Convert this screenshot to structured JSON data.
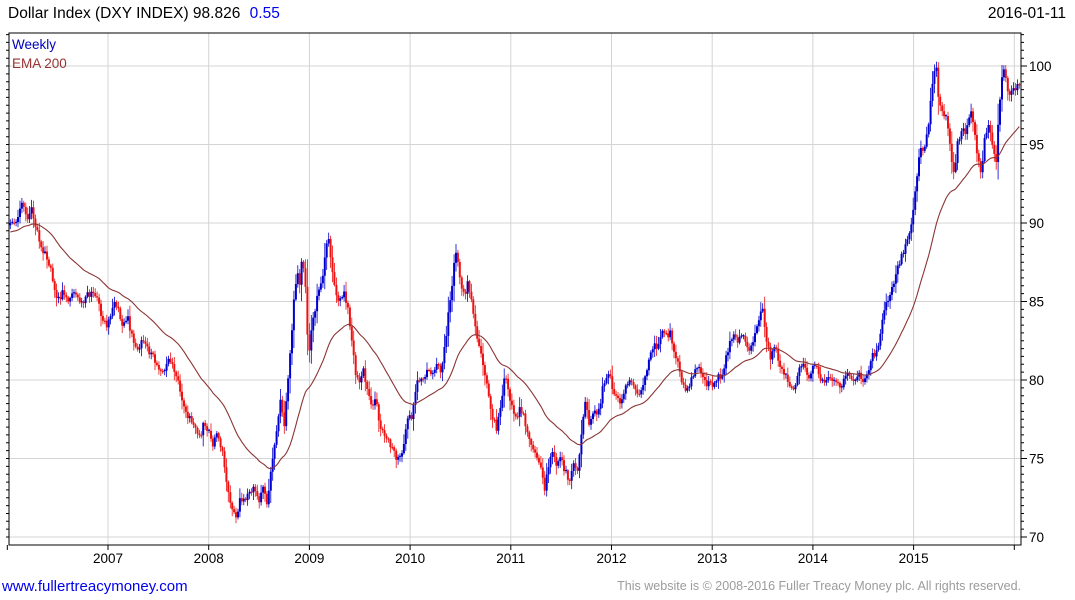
{
  "header": {
    "title": "Dollar Index (DXY INDEX)",
    "last": "98.826",
    "change": "0.55",
    "change_color": "#0000ee",
    "date": "2016-01-11"
  },
  "legend": {
    "items": [
      {
        "label": "Weekly",
        "color": "#0000bb"
      },
      {
        "label": "EMA 200",
        "color": "#993333"
      }
    ]
  },
  "footer": {
    "link": "www.fullertreacymoney.com",
    "copyright": "This website is © 2008-2016 Fuller Treacy Money plc. All rights reserved."
  },
  "chart_data": {
    "type": "candlestick",
    "title": "Dollar Index (DXY INDEX)",
    "timeframe": "Weekly",
    "last_close": 98.826,
    "weekly_change": 0.55,
    "x_range": [
      2006.03,
      2016.05
    ],
    "y_range": [
      69.5,
      102.2
    ],
    "x_ticks": [
      2007,
      2008,
      2009,
      2010,
      2011,
      2012,
      2013,
      2014,
      2015
    ],
    "x_tick_marks": [
      2006,
      2007,
      2008,
      2009,
      2010,
      2011,
      2012,
      2013,
      2014,
      2015,
      2016
    ],
    "x_grid_years": [
      2007,
      2008,
      2009,
      2010,
      2011,
      2012,
      2013,
      2014,
      2015,
      2016
    ],
    "y_ticks": [
      70,
      75,
      80,
      85,
      90,
      95,
      100
    ],
    "y_minor_step": 0.5,
    "grid": true,
    "legend_position": "top-left",
    "colors": {
      "up": "#0000cc",
      "down": "#ee1111",
      "ema": "#8b3434",
      "grid": "#d4d4d4",
      "axis": "#000000"
    },
    "ema": {
      "label": "EMA 200",
      "period_days": 200,
      "weekly_alpha": 0.0488,
      "seed": 89.4
    },
    "close_anchors": [
      [
        2006.03,
        89.8
      ],
      [
        2006.08,
        90.1
      ],
      [
        2006.12,
        90.7
      ],
      [
        2006.16,
        91.3
      ],
      [
        2006.2,
        90.2
      ],
      [
        2006.24,
        90.9
      ],
      [
        2006.3,
        89.4
      ],
      [
        2006.35,
        88.3
      ],
      [
        2006.42,
        87.3
      ],
      [
        2006.46,
        86.2
      ],
      [
        2006.5,
        84.9
      ],
      [
        2006.55,
        85.7
      ],
      [
        2006.6,
        84.8
      ],
      [
        2006.65,
        85.6
      ],
      [
        2006.7,
        85.2
      ],
      [
        2006.75,
        84.7
      ],
      [
        2006.8,
        85.4
      ],
      [
        2006.85,
        85.8
      ],
      [
        2006.9,
        85.1
      ],
      [
        2006.95,
        83.6
      ],
      [
        2007.0,
        83.4
      ],
      [
        2007.05,
        84.9
      ],
      [
        2007.1,
        84.5
      ],
      [
        2007.14,
        83.6
      ],
      [
        2007.2,
        83.9
      ],
      [
        2007.25,
        82.4
      ],
      [
        2007.3,
        81.8
      ],
      [
        2007.35,
        82.7
      ],
      [
        2007.4,
        81.9
      ],
      [
        2007.45,
        81.4
      ],
      [
        2007.5,
        80.7
      ],
      [
        2007.55,
        80.3
      ],
      [
        2007.6,
        81.3
      ],
      [
        2007.65,
        80.8
      ],
      [
        2007.7,
        79.8
      ],
      [
        2007.75,
        78.2
      ],
      [
        2007.8,
        77.6
      ],
      [
        2007.85,
        77.2
      ],
      [
        2007.9,
        76.2
      ],
      [
        2007.95,
        77.1
      ],
      [
        2008.0,
        76.6
      ],
      [
        2008.04,
        75.9
      ],
      [
        2008.08,
        76.7
      ],
      [
        2008.13,
        75.6
      ],
      [
        2008.17,
        73.7
      ],
      [
        2008.2,
        72.4
      ],
      [
        2008.24,
        71.6
      ],
      [
        2008.28,
        71.3
      ],
      [
        2008.32,
        72.6
      ],
      [
        2008.36,
        72.2
      ],
      [
        2008.4,
        72.8
      ],
      [
        2008.45,
        73.3
      ],
      [
        2008.5,
        72.3
      ],
      [
        2008.54,
        73.0
      ],
      [
        2008.58,
        72.1
      ],
      [
        2008.61,
        73.6
      ],
      [
        2008.65,
        75.5
      ],
      [
        2008.68,
        77.3
      ],
      [
        2008.72,
        78.8
      ],
      [
        2008.75,
        77.1
      ],
      [
        2008.78,
        79.2
      ],
      [
        2008.82,
        82.6
      ],
      [
        2008.85,
        85.4
      ],
      [
        2008.88,
        87.2
      ],
      [
        2008.9,
        85.8
      ],
      [
        2008.93,
        88.0
      ],
      [
        2008.96,
        86.2
      ],
      [
        2008.99,
        81.3
      ],
      [
        2009.02,
        83.1
      ],
      [
        2009.06,
        84.6
      ],
      [
        2009.1,
        86.0
      ],
      [
        2009.14,
        86.9
      ],
      [
        2009.18,
        89.4
      ],
      [
        2009.22,
        87.5
      ],
      [
        2009.26,
        85.4
      ],
      [
        2009.3,
        84.8
      ],
      [
        2009.34,
        85.9
      ],
      [
        2009.38,
        84.6
      ],
      [
        2009.42,
        82.7
      ],
      [
        2009.46,
        80.2
      ],
      [
        2009.5,
        79.9
      ],
      [
        2009.54,
        80.6
      ],
      [
        2009.58,
        79.3
      ],
      [
        2009.62,
        78.3
      ],
      [
        2009.66,
        78.8
      ],
      [
        2009.7,
        76.9
      ],
      [
        2009.75,
        76.4
      ],
      [
        2009.8,
        75.9
      ],
      [
        2009.85,
        75.2
      ],
      [
        2009.9,
        74.9
      ],
      [
        2009.94,
        75.8
      ],
      [
        2009.98,
        77.9
      ],
      [
        2010.02,
        77.5
      ],
      [
        2010.06,
        79.5
      ],
      [
        2010.1,
        80.3
      ],
      [
        2010.14,
        79.8
      ],
      [
        2010.18,
        80.7
      ],
      [
        2010.22,
        80.2
      ],
      [
        2010.26,
        81.1
      ],
      [
        2010.3,
        80.4
      ],
      [
        2010.34,
        81.9
      ],
      [
        2010.38,
        84.2
      ],
      [
        2010.42,
        86.1
      ],
      [
        2010.45,
        88.3
      ],
      [
        2010.48,
        87.5
      ],
      [
        2010.5,
        86.0
      ],
      [
        2010.54,
        85.3
      ],
      [
        2010.58,
        86.3
      ],
      [
        2010.62,
        84.5
      ],
      [
        2010.66,
        83.0
      ],
      [
        2010.7,
        81.6
      ],
      [
        2010.74,
        80.5
      ],
      [
        2010.78,
        79.0
      ],
      [
        2010.82,
        77.6
      ],
      [
        2010.86,
        76.8
      ],
      [
        2010.9,
        78.4
      ],
      [
        2010.94,
        80.4
      ],
      [
        2010.98,
        79.1
      ],
      [
        2011.02,
        78.1
      ],
      [
        2011.06,
        77.6
      ],
      [
        2011.1,
        78.3
      ],
      [
        2011.14,
        77.3
      ],
      [
        2011.18,
        76.4
      ],
      [
        2011.22,
        75.8
      ],
      [
        2011.26,
        75.2
      ],
      [
        2011.3,
        74.2
      ],
      [
        2011.34,
        73.1
      ],
      [
        2011.38,
        74.9
      ],
      [
        2011.42,
        75.6
      ],
      [
        2011.46,
        74.4
      ],
      [
        2011.5,
        75.1
      ],
      [
        2011.54,
        74.1
      ],
      [
        2011.58,
        73.7
      ],
      [
        2011.62,
        74.6
      ],
      [
        2011.66,
        73.9
      ],
      [
        2011.7,
        76.6
      ],
      [
        2011.74,
        78.8
      ],
      [
        2011.78,
        77.2
      ],
      [
        2011.82,
        78.1
      ],
      [
        2011.86,
        77.5
      ],
      [
        2011.9,
        79.0
      ],
      [
        2011.94,
        80.3
      ],
      [
        2011.98,
        80.2
      ],
      [
        2012.02,
        79.4
      ],
      [
        2012.06,
        79.0
      ],
      [
        2012.1,
        78.6
      ],
      [
        2012.14,
        79.4
      ],
      [
        2012.18,
        79.9
      ],
      [
        2012.22,
        79.5
      ],
      [
        2012.26,
        78.9
      ],
      [
        2012.3,
        79.6
      ],
      [
        2012.34,
        80.2
      ],
      [
        2012.38,
        81.3
      ],
      [
        2012.42,
        82.4
      ],
      [
        2012.46,
        81.9
      ],
      [
        2012.5,
        83.4
      ],
      [
        2012.54,
        82.7
      ],
      [
        2012.58,
        83.0
      ],
      [
        2012.62,
        81.7
      ],
      [
        2012.66,
        81.3
      ],
      [
        2012.7,
        79.9
      ],
      [
        2012.74,
        79.4
      ],
      [
        2012.78,
        79.9
      ],
      [
        2012.82,
        80.5
      ],
      [
        2012.86,
        81.0
      ],
      [
        2012.9,
        80.3
      ],
      [
        2012.94,
        79.7
      ],
      [
        2012.98,
        79.8
      ],
      [
        2013.02,
        79.6
      ],
      [
        2013.06,
        80.3
      ],
      [
        2013.1,
        80.1
      ],
      [
        2013.14,
        81.4
      ],
      [
        2013.18,
        82.7
      ],
      [
        2013.22,
        82.9
      ],
      [
        2013.26,
        82.4
      ],
      [
        2013.3,
        83.2
      ],
      [
        2013.34,
        82.1
      ],
      [
        2013.38,
        81.8
      ],
      [
        2013.42,
        83.0
      ],
      [
        2013.46,
        83.9
      ],
      [
        2013.5,
        84.5
      ],
      [
        2013.53,
        83.0
      ],
      [
        2013.58,
        81.4
      ],
      [
        2013.62,
        82.3
      ],
      [
        2013.66,
        81.3
      ],
      [
        2013.7,
        80.4
      ],
      [
        2013.74,
        80.1
      ],
      [
        2013.78,
        79.3
      ],
      [
        2013.82,
        79.7
      ],
      [
        2013.86,
        80.7
      ],
      [
        2013.9,
        80.9
      ],
      [
        2013.94,
        80.3
      ],
      [
        2013.98,
        80.2
      ],
      [
        2014.02,
        81.1
      ],
      [
        2014.06,
        80.4
      ],
      [
        2014.1,
        79.8
      ],
      [
        2014.14,
        80.1
      ],
      [
        2014.18,
        80.3
      ],
      [
        2014.22,
        79.9
      ],
      [
        2014.26,
        79.5
      ],
      [
        2014.3,
        79.8
      ],
      [
        2014.34,
        80.4
      ],
      [
        2014.38,
        80.1
      ],
      [
        2014.42,
        79.8
      ],
      [
        2014.46,
        80.3
      ],
      [
        2014.5,
        80.1
      ],
      [
        2014.54,
        80.6
      ],
      [
        2014.58,
        81.3
      ],
      [
        2014.62,
        81.8
      ],
      [
        2014.66,
        82.6
      ],
      [
        2014.7,
        84.0
      ],
      [
        2014.74,
        85.1
      ],
      [
        2014.78,
        85.9
      ],
      [
        2014.82,
        86.6
      ],
      [
        2014.86,
        87.5
      ],
      [
        2014.9,
        88.1
      ],
      [
        2014.94,
        89.1
      ],
      [
        2014.98,
        90.1
      ],
      [
        2015.02,
        92.2
      ],
      [
        2015.06,
        94.8
      ],
      [
        2015.1,
        94.7
      ],
      [
        2015.13,
        95.4
      ],
      [
        2015.16,
        97.0
      ],
      [
        2015.19,
        98.9
      ],
      [
        2015.22,
        100.2
      ],
      [
        2015.25,
        97.8
      ],
      [
        2015.28,
        97.3
      ],
      [
        2015.32,
        96.8
      ],
      [
        2015.36,
        94.9
      ],
      [
        2015.4,
        93.2
      ],
      [
        2015.44,
        95.1
      ],
      [
        2015.48,
        96.0
      ],
      [
        2015.52,
        95.5
      ],
      [
        2015.56,
        97.2
      ],
      [
        2015.6,
        96.3
      ],
      [
        2015.64,
        94.0
      ],
      [
        2015.67,
        92.9
      ],
      [
        2015.7,
        95.3
      ],
      [
        2015.74,
        96.1
      ],
      [
        2015.78,
        95.2
      ],
      [
        2015.82,
        94.1
      ],
      [
        2015.86,
        98.2
      ],
      [
        2015.9,
        100.1
      ],
      [
        2015.94,
        98.4
      ],
      [
        2015.98,
        98.3
      ],
      [
        2016.02,
        98.5
      ],
      [
        2016.05,
        98.83
      ]
    ]
  }
}
